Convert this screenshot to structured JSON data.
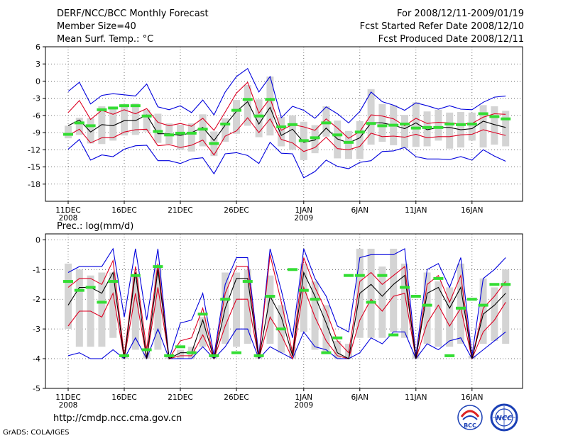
{
  "header": {
    "title": "DERF/NCC/BCC Monthly Forecast",
    "member_size": "Member Size=40",
    "variable": "Mean Surf. Temp.: °C",
    "period": "For 2008/12/11-2009/01/19",
    "fcst_started": "Fcst Started Refer Date 2008/12/10",
    "fcst_produced": "Fcst Produced Date 2008/12/11"
  },
  "footer": {
    "url": "http://cmdp.ncc.cma.gov.cn",
    "grads": "GrADS: COLA/IGES"
  },
  "logos": {
    "left_text": "BCC",
    "right_text": "NCC"
  },
  "colors": {
    "outer": "#0000dd",
    "inner": "#dd0022",
    "mean": "#000000",
    "box": "#d4d4d4",
    "obs": "#33dd33",
    "grid": "#555555"
  },
  "chart_data": [
    {
      "type": "line",
      "title": "Mean Surf. Temp.: °C",
      "xlabel": "",
      "ylabel": "°C",
      "ylim": [
        -21,
        6
      ],
      "yticks": [
        6,
        3,
        0,
        -3,
        -6,
        -9,
        -12,
        -15,
        -18
      ],
      "ytick_labels": [
        "6",
        "3",
        "0",
        "-3",
        "-6",
        "-9",
        "-12",
        "-15",
        "-18"
      ],
      "xticks": [
        {
          "day": 0,
          "label": "11DEC",
          "sub": "2008"
        },
        {
          "day": 5,
          "label": "16DEC",
          "sub": ""
        },
        {
          "day": 10,
          "label": "21DEC",
          "sub": ""
        },
        {
          "day": 15,
          "label": "26DEC",
          "sub": ""
        },
        {
          "day": 21,
          "label": "1JAN",
          "sub": "2009"
        },
        {
          "day": 26,
          "label": "6JAN",
          "sub": ""
        },
        {
          "day": 31,
          "label": "11JAN",
          "sub": ""
        },
        {
          "day": 36,
          "label": "16JAN",
          "sub": ""
        }
      ],
      "x": [
        0,
        1,
        2,
        3,
        4,
        5,
        6,
        7,
        8,
        9,
        10,
        11,
        12,
        13,
        14,
        15,
        16,
        17,
        18,
        19,
        20,
        21,
        22,
        23,
        24,
        25,
        26,
        27,
        28,
        29,
        30,
        31,
        32,
        33,
        34,
        35,
        36,
        37,
        38,
        39
      ],
      "series": [
        {
          "name": "max",
          "values": [
            -1.8,
            -0.2,
            -4,
            -2.5,
            -2.2,
            -2.4,
            -2.6,
            -0.5,
            -4.5,
            -5,
            -4.3,
            -5.5,
            -3.3,
            -5.9,
            -1.9,
            0.8,
            2.2,
            -1.9,
            0.8,
            -6.4,
            -4.4,
            -5.1,
            -6.5,
            -4.5,
            -5.7,
            -7.3,
            -5.3,
            -1.9,
            -3.6,
            -4.2,
            -5.1,
            -3.8,
            -4.3,
            -4.9,
            -4.3,
            -4.9,
            -5,
            -3.7,
            -2.8,
            -2.6
          ]
        },
        {
          "name": "upper",
          "values": [
            -5.5,
            -3.4,
            -6.7,
            -5.1,
            -5.8,
            -5,
            -5.7,
            -4.8,
            -7.2,
            -7.8,
            -7.4,
            -7.9,
            -6.5,
            -8.6,
            -5.4,
            -2.1,
            -0.2,
            -5.6,
            -3,
            -8.6,
            -7.6,
            -8,
            -8.6,
            -6.6,
            -8.2,
            -10,
            -8.8,
            -5.9,
            -6.1,
            -6.6,
            -7.8,
            -6.5,
            -7.4,
            -7.2,
            -7.3,
            -7.5,
            -7.4,
            -6.3,
            -5.7,
            -5.8
          ]
        },
        {
          "name": "mean",
          "values": [
            -7.8,
            -6.8,
            -8.9,
            -7.6,
            -7.8,
            -6.9,
            -6.9,
            -5.9,
            -9.2,
            -9.2,
            -9.5,
            -9,
            -8.1,
            -10.4,
            -7.7,
            -5.3,
            -3.6,
            -7.5,
            -4.6,
            -9.5,
            -8.4,
            -10.7,
            -10.3,
            -8.2,
            -10.1,
            -10.8,
            -9.9,
            -7.3,
            -7.3,
            -7.7,
            -8.3,
            -7.3,
            -8.5,
            -8.1,
            -8.1,
            -8.5,
            -8.3,
            -7,
            -7.6,
            -8.1
          ]
        },
        {
          "name": "lower",
          "values": [
            -9.5,
            -8.4,
            -10.8,
            -9.9,
            -9.9,
            -8.9,
            -8.5,
            -8.4,
            -11.3,
            -11.1,
            -11.6,
            -11.2,
            -10.3,
            -12.9,
            -9.6,
            -8.7,
            -6.4,
            -9,
            -6.6,
            -10.2,
            -10.8,
            -12.3,
            -11.6,
            -9.8,
            -11.8,
            -12,
            -11.4,
            -9.1,
            -9.7,
            -9.6,
            -9.8,
            -9.3,
            -9.9,
            -9.7,
            -9.7,
            -9.4,
            -9.3,
            -8.5,
            -9,
            -9.5
          ]
        },
        {
          "name": "min",
          "values": [
            -11.9,
            -10.2,
            -13.8,
            -12.9,
            -13.2,
            -11.9,
            -11.3,
            -11.2,
            -13.9,
            -13.9,
            -14.4,
            -13.6,
            -13.4,
            -16.2,
            -12.7,
            -12.5,
            -13,
            -14.4,
            -10.7,
            -12.6,
            -12.7,
            -16.9,
            -15.8,
            -13.8,
            -14.9,
            -15.3,
            -14.2,
            -13.9,
            -12.3,
            -12.2,
            -11.6,
            -13.2,
            -13.6,
            -13.6,
            -13.7,
            -13.2,
            -13.8,
            -12,
            -13.1,
            -14
          ]
        },
        {
          "name": "box_top",
          "values": [
            -7.8,
            -6.4,
            -6.5,
            -4.4,
            -4.6,
            -4,
            -3.9,
            -5,
            -5.7,
            -7.4,
            -7.6,
            -7.4,
            -5.8,
            -8.8,
            -6.5,
            -3.3,
            -0.7,
            -3.2,
            0.8,
            -6.3,
            -6,
            -7.1,
            -7.7,
            -4.4,
            -6.9,
            -8.7,
            -7,
            -1.4,
            -4,
            -4.2,
            -5.9,
            -3.7,
            -5.3,
            -5,
            -5.5,
            -5.4,
            -5.5,
            -4.2,
            -4.4,
            -5.2
          ]
        },
        {
          "name": "box_bottom",
          "values": [
            -10,
            -9.4,
            -10.9,
            -11,
            -10.4,
            -9.5,
            -9.4,
            -8.8,
            -10.8,
            -11,
            -12,
            -12.3,
            -11.4,
            -13.1,
            -10.6,
            -9.2,
            -7.8,
            -9.8,
            -9.5,
            -11.4,
            -12,
            -13.8,
            -12.6,
            -9.7,
            -13.5,
            -13.6,
            -13.6,
            -11.1,
            -10.6,
            -11.2,
            -11.7,
            -11.5,
            -11.4,
            -10.4,
            -11.8,
            -11.6,
            -10.4,
            -11.6,
            -11.1,
            -11.4
          ]
        },
        {
          "name": "observed",
          "values": [
            -9.3,
            -7.3,
            -7.8,
            -5,
            -4.7,
            -4.3,
            -4.3,
            -6.1,
            -8.8,
            -9.4,
            -9.1,
            -9.1,
            -8.4,
            -10.9,
            -7.5,
            -5.1,
            -3.2,
            -6.1,
            -3.2,
            -8,
            -7.6,
            -10.4,
            -9.9,
            -7.3,
            -9.4,
            -10.7,
            -8.9,
            -7.4,
            -7.8,
            -7.7,
            -7.5,
            -8.2,
            -8.1,
            -8.1,
            -7.5,
            -7.6,
            -7.5,
            -5.7,
            -6.2,
            -6.6
          ]
        }
      ]
    },
    {
      "type": "line",
      "title": "Prec.: log(mm/d)",
      "xlabel": "",
      "ylabel": "log(mm/d)",
      "ylim": [
        -5,
        0.2
      ],
      "yticks": [
        0,
        -1,
        -2,
        -3,
        -4,
        -5
      ],
      "ytick_labels": [
        "0",
        "-1",
        "-2",
        "-3",
        "-4",
        "-5"
      ],
      "xticks": [
        {
          "day": 0,
          "label": "11DEC",
          "sub": "2008"
        },
        {
          "day": 5,
          "label": "16DEC",
          "sub": ""
        },
        {
          "day": 10,
          "label": "21DEC",
          "sub": ""
        },
        {
          "day": 15,
          "label": "26DEC",
          "sub": ""
        },
        {
          "day": 21,
          "label": "1JAN",
          "sub": "2009"
        },
        {
          "day": 26,
          "label": "6JAN",
          "sub": ""
        },
        {
          "day": 31,
          "label": "11JAN",
          "sub": ""
        },
        {
          "day": 36,
          "label": "16JAN",
          "sub": ""
        }
      ],
      "x": [
        0,
        1,
        2,
        3,
        4,
        5,
        6,
        7,
        8,
        9,
        10,
        11,
        12,
        13,
        14,
        15,
        16,
        17,
        18,
        19,
        20,
        21,
        22,
        23,
        24,
        25,
        26,
        27,
        28,
        29,
        30,
        31,
        32,
        33,
        34,
        35,
        36,
        37,
        38,
        39
      ],
      "series": [
        {
          "name": "max",
          "values": [
            -1.1,
            -0.9,
            -0.9,
            -0.9,
            -0.3,
            -2.6,
            -0.3,
            -2.7,
            -0.3,
            -4,
            -2.8,
            -2.7,
            -1.8,
            -3.9,
            -1.5,
            -0.6,
            -0.6,
            -3.9,
            -0.3,
            -1.7,
            -3.3,
            -0.3,
            -1.3,
            -1.9,
            -2.9,
            -3.1,
            -0.6,
            -0.5,
            -0.5,
            -0.5,
            -0.3,
            -3.9,
            -1,
            -0.8,
            -1.6,
            -0.6,
            -3.9,
            -1.3,
            -1,
            -0.6
          ]
        },
        {
          "name": "upper",
          "values": [
            -1.6,
            -1.3,
            -1.3,
            -1.5,
            -0.7,
            -3.9,
            -0.9,
            -3.7,
            -0.8,
            -4,
            -3.4,
            -3.3,
            -2.3,
            -4,
            -1.8,
            -0.9,
            -0.9,
            -4,
            -0.5,
            -2.1,
            -3.8,
            -0.6,
            -1.6,
            -2.4,
            -3.4,
            -3.8,
            -1.4,
            -1.1,
            -1.5,
            -1.2,
            -0.9,
            -4,
            -1.5,
            -1.2,
            -2.1,
            -1.2,
            -4,
            -2.3,
            -1.9,
            -1.4
          ]
        },
        {
          "name": "mean",
          "values": [
            -2.2,
            -1.6,
            -1.6,
            -1.8,
            -1.1,
            -4,
            -1.1,
            -4,
            -1,
            -4,
            -3.8,
            -3.8,
            -2.7,
            -4,
            -2.3,
            -1.3,
            -1.3,
            -4,
            -1.9,
            -2.6,
            -3.9,
            -1.1,
            -1.9,
            -2.8,
            -3.8,
            -4,
            -1.8,
            -1.5,
            -1.9,
            -1.5,
            -1.2,
            -4,
            -1.8,
            -1.6,
            -2.3,
            -1.6,
            -4,
            -2.5,
            -2.2,
            -1.8
          ]
        },
        {
          "name": "lower",
          "values": [
            -2.9,
            -2.4,
            -2.4,
            -2.6,
            -1.8,
            -4,
            -1.8,
            -4,
            -1.6,
            -4,
            -3.9,
            -3.9,
            -3.2,
            -4,
            -2.9,
            -2,
            -2,
            -4,
            -2.6,
            -3.2,
            -4,
            -1.6,
            -2.6,
            -3.4,
            -3.9,
            -4,
            -2.7,
            -2,
            -2.4,
            -1.9,
            -1.8,
            -4,
            -2.8,
            -2.2,
            -2.9,
            -2.3,
            -4,
            -3.1,
            -2.7,
            -2.1
          ]
        },
        {
          "name": "min",
          "values": [
            -3.9,
            -3.8,
            -4,
            -4,
            -3.7,
            -4,
            -3.3,
            -4,
            -3,
            -4,
            -4,
            -4,
            -3.6,
            -4,
            -3.6,
            -3,
            -3,
            -4,
            -3.6,
            -3.8,
            -4,
            -3.1,
            -3.6,
            -3.7,
            -4,
            -4,
            -3.8,
            -3.3,
            -3.5,
            -3.1,
            -3.1,
            -4,
            -3.5,
            -3.7,
            -3.4,
            -3.3,
            -4,
            -3.7,
            -3.4,
            -3.1
          ]
        },
        {
          "name": "box_top",
          "values": [
            -0.8,
            -1,
            -1.2,
            -1.1,
            -1.1,
            -3.9,
            -1.2,
            -3.8,
            -0.9,
            -3.9,
            -3.7,
            -3.6,
            -2.6,
            -3.9,
            -1.1,
            -1.1,
            -1,
            -3.9,
            -1.2,
            -2.2,
            -3.6,
            -0.8,
            -1.4,
            -2.2,
            -3.4,
            -3.5,
            -0.3,
            -0.3,
            -0.9,
            -0.3,
            -0.8,
            -3.8,
            -1.1,
            -1.4,
            -1.6,
            -0.8,
            -3.9,
            -1.3,
            -1.6,
            -1
          ]
        },
        {
          "name": "box_bottom",
          "values": [
            -3,
            -3.6,
            -3.6,
            -3.6,
            -3.3,
            -4,
            -3.7,
            -4,
            -3.7,
            -4,
            -4,
            -4,
            -3.6,
            -4,
            -3.5,
            -3.6,
            -3.5,
            -4,
            -3.5,
            -3.8,
            -4,
            -3.1,
            -3.7,
            -3.8,
            -4,
            -4,
            -3.3,
            -3.3,
            -3.3,
            -3.1,
            -3.3,
            -4,
            -3.5,
            -3.6,
            -3.6,
            -3.5,
            -4,
            -3.5,
            -3.4,
            -3.5
          ]
        },
        {
          "name": "observed",
          "values": [
            -1.4,
            -1.7,
            -1.6,
            -2.1,
            -1.4,
            -3.9,
            -1.2,
            -3.7,
            -0.9,
            -3.9,
            -3.6,
            -3.8,
            -2.5,
            -3.9,
            -2,
            -3.8,
            -1.4,
            -3.9,
            -1.9,
            -3,
            -1,
            -1.7,
            -2,
            -3.8,
            -3.3,
            -1.2,
            -1.2,
            -2.1,
            -1.2,
            -3.2,
            -1.6,
            -1.9,
            -2.2,
            -1.3,
            -3.9,
            -2.3,
            -2,
            -2.2,
            -1.5,
            -1.5
          ]
        }
      ]
    }
  ]
}
